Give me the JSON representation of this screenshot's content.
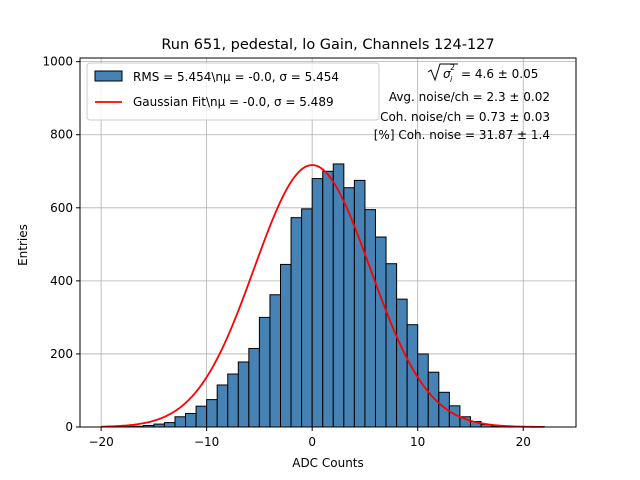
{
  "chart_data": {
    "type": "histogram",
    "title": "Run 651, pedestal, lo Gain, Channels 124-127",
    "xlabel": "ADC Counts",
    "ylabel": "Entries",
    "xlim": [
      -22,
      25
    ],
    "ylim": [
      0,
      1010
    ],
    "grid": true,
    "x_ticks": [
      {
        "value": -20,
        "label": "−20"
      },
      {
        "value": -10,
        "label": "−10"
      },
      {
        "value": 0,
        "label": "0"
      },
      {
        "value": 10,
        "label": "10"
      },
      {
        "value": 20,
        "label": "20"
      }
    ],
    "y_ticks": [
      {
        "value": 0,
        "label": "0"
      },
      {
        "value": 200,
        "label": "200"
      },
      {
        "value": 400,
        "label": "400"
      },
      {
        "value": 600,
        "label": "600"
      },
      {
        "value": 800,
        "label": "800"
      },
      {
        "value": 1000,
        "label": "1000"
      }
    ],
    "bin_width": 1,
    "bin_start": -18,
    "counts": [
      1,
      2,
      4,
      8,
      12,
      28,
      37,
      57,
      75,
      115,
      145,
      178,
      215,
      300,
      362,
      445,
      573,
      597,
      680,
      700,
      720,
      655,
      675,
      595,
      520,
      447,
      350,
      280,
      200,
      150,
      95,
      58,
      28,
      15,
      7,
      3,
      1,
      1,
      1,
      1
    ],
    "hist_color": "#4682b4",
    "fit": {
      "label": "Gaussian Fit\\nμ = -0.0, σ = 5.489",
      "mu": 0.0,
      "sigma": 5.489,
      "amplitude": 717,
      "x_range": [
        -20,
        22
      ],
      "color": "#ff0000"
    },
    "legend": {
      "placement": "top-left",
      "entries": [
        {
          "label": "RMS = 5.454\\nμ = -0.0, σ = 5.454",
          "kind": "patch"
        },
        {
          "label": "Gaussian Fit\\nμ = -0.0, σ = 5.489",
          "kind": "line"
        }
      ]
    },
    "annotations": {
      "sigma_line_value": "= 4.6 ± 0.05",
      "avg_noise": "Avg. noise/ch = 2.3 ± 0.02",
      "coh_noise": "Coh. noise/ch = 0.73 ± 0.03",
      "pct_coh_noise": "[%] Coh. noise = 31.87 ± 1.4"
    }
  }
}
